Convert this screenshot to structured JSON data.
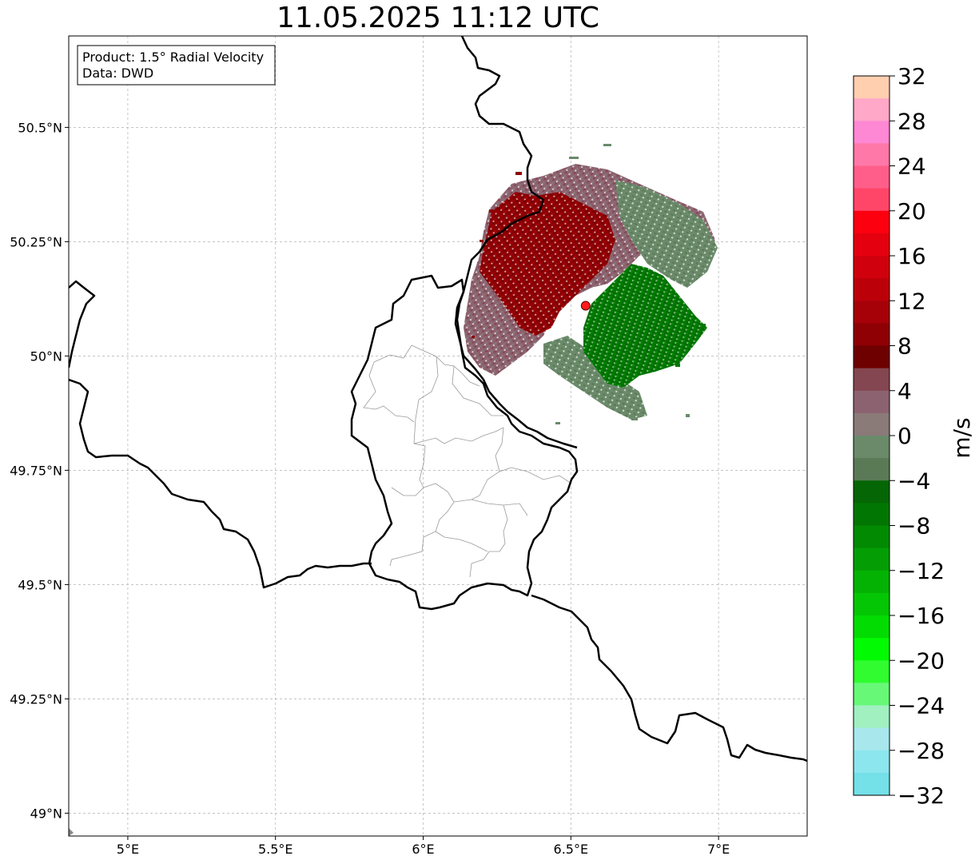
{
  "title": "11.05.2025 11:12 UTC",
  "info_box": {
    "line1": "Product: 1.5° Radial Velocity",
    "line2": "Data: DWD"
  },
  "axes": {
    "lon_ticks": [
      {
        "value": 5.0,
        "label": "5°E"
      },
      {
        "value": 5.5,
        "label": "5.5°E"
      },
      {
        "value": 6.0,
        "label": "6°E"
      },
      {
        "value": 6.5,
        "label": "6.5°E"
      },
      {
        "value": 7.0,
        "label": "7°E"
      }
    ],
    "lat_ticks": [
      {
        "value": 50.5,
        "label": "50.5°N"
      },
      {
        "value": 50.25,
        "label": "50.25°N"
      },
      {
        "value": 50.0,
        "label": "50°N"
      },
      {
        "value": 49.75,
        "label": "49.75°N"
      },
      {
        "value": 49.5,
        "label": "49.5°N"
      },
      {
        "value": 49.25,
        "label": "49.25°N"
      },
      {
        "value": 49.0,
        "label": "49°N"
      }
    ],
    "lon_range": [
      4.8,
      7.3
    ],
    "lat_range": [
      48.95,
      50.7
    ],
    "grid": true
  },
  "radar_site": {
    "lon": 6.55,
    "lat": 50.11
  },
  "colorbar": {
    "unit": "m/s",
    "range": [
      -32,
      32
    ],
    "tick_labels": [
      "32",
      "28",
      "24",
      "20",
      "16",
      "12",
      "8",
      "4",
      "0",
      "−4",
      "−8",
      "−12",
      "−16",
      "−20",
      "−24",
      "−28",
      "−32"
    ],
    "colors_top_to_bottom": [
      "#ffcfb0",
      "#ffa8c8",
      "#ff88d4",
      "#ff78a8",
      "#ff5e8a",
      "#ff4668",
      "#fc0010",
      "#e4000e",
      "#d0000c",
      "#bc000a",
      "#a60008",
      "#8e0004",
      "#6e0000",
      "#844650",
      "#8c6270",
      "#8a7a78",
      "#6a8a6a",
      "#5a7a56",
      "#046604",
      "#027602",
      "#028a02",
      "#049e04",
      "#04b204",
      "#04c604",
      "#02dc02",
      "#02fa02",
      "#30fc30",
      "#68f878",
      "#a0f0c0",
      "#a8e8ec",
      "#8ce6ee",
      "#74e0e8"
    ]
  },
  "chart_data": {
    "type": "map",
    "title": "11.05.2025 11:12 UTC",
    "product": "1.5° Radial Velocity",
    "source": "DWD",
    "variable_unit": "m/s",
    "value_range": [
      -32,
      32
    ],
    "extent": {
      "lon": [
        4.8,
        7.3
      ],
      "lat": [
        48.95,
        50.7
      ]
    },
    "radar_location": {
      "lon": 6.55,
      "lat": 50.11
    },
    "echo_regions": [
      {
        "description_value": "8 to 12 m/s",
        "center": {
          "lon": 6.35,
          "lat": 50.2
        }
      },
      {
        "description_value": "0 to 6 m/s",
        "center": {
          "lon": 6.55,
          "lat": 50.3
        }
      },
      {
        "description_value": "-8 to -4 m/s",
        "center": {
          "lon": 6.75,
          "lat": 50.05
        }
      }
    ]
  }
}
